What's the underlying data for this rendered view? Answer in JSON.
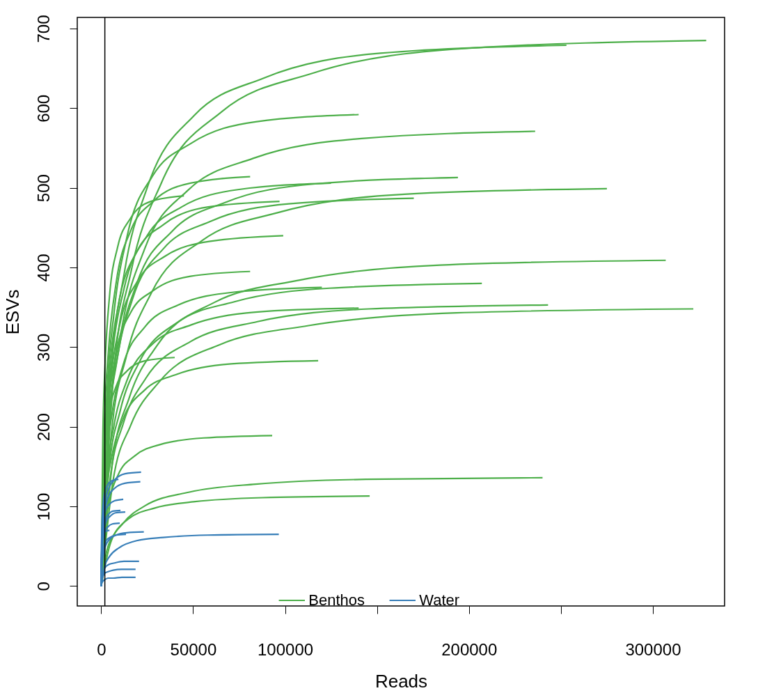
{
  "chart_data": {
    "type": "line",
    "xlabel": "Reads",
    "ylabel": "ESVs",
    "xlim": [
      -13000,
      339000
    ],
    "ylim": [
      -25,
      714
    ],
    "xticks": [
      0,
      50000,
      100000,
      {
        "value": 150000,
        "label": null
      },
      200000,
      {
        "value": 250000,
        "label": null
      },
      300000
    ],
    "yticks": [
      0,
      100,
      200,
      300,
      400,
      500,
      600,
      700
    ],
    "grid": false,
    "legend": "bottom",
    "ref_lines": [
      {
        "axis": "x",
        "value": 2000,
        "color": "#000000"
      }
    ],
    "series": [
      {
        "name": "Benthos",
        "color": "#4daf4a",
        "x": [
          0,
          5060,
          12650,
          25300,
          50600,
          88550,
          151800,
          253000
        ],
        "values": [
          0,
          258,
          394,
          502,
          591,
          638,
          669,
          679
        ]
      },
      {
        "color": "#4daf4a",
        "x": [
          0,
          6580,
          16450,
          32900,
          65800,
          115150,
          197400,
          329000
        ],
        "values": [
          0,
          260,
          397,
          507,
          596,
          644,
          675,
          685
        ]
      },
      {
        "color": "#4daf4a",
        "x": [
          0,
          2800,
          7000,
          14000,
          28000,
          49000,
          84000,
          140000
        ],
        "values": [
          0,
          225,
          343,
          438,
          515,
          556,
          583,
          592
        ]
      },
      {
        "color": "#4daf4a",
        "x": [
          0,
          4720,
          11800,
          23600,
          47200,
          82600,
          141600,
          236000
        ],
        "values": [
          0,
          217,
          331,
          423,
          497,
          537,
          562,
          571
        ]
      },
      {
        "color": "#4daf4a",
        "x": [
          0,
          1620,
          4050,
          8100,
          16200,
          28350,
          48600,
          81000
        ],
        "values": [
          0,
          195,
          298,
          380,
          447,
          483,
          506,
          514
        ]
      },
      {
        "color": "#4daf4a",
        "x": [
          0,
          2500,
          6250,
          12500,
          25000,
          43750,
          75000,
          125000
        ],
        "values": [
          0,
          192,
          293,
          374,
          440,
          476,
          498,
          506
        ]
      },
      {
        "color": "#4daf4a",
        "x": [
          0,
          3880,
          9700,
          19400,
          38800,
          67900,
          116400,
          194000
        ],
        "values": [
          0,
          195,
          298,
          380,
          446,
          482,
          505,
          513
        ]
      },
      {
        "color": "#4daf4a",
        "x": [
          0,
          900,
          2250,
          4500,
          9000,
          15750,
          27000,
          45000
        ],
        "values": [
          0,
          186,
          284,
          363,
          426,
          461,
          483,
          490
        ]
      },
      {
        "color": "#4daf4a",
        "x": [
          0,
          1940,
          4850,
          9700,
          19400,
          33950,
          58200,
          97000
        ],
        "values": [
          0,
          184,
          280,
          357,
          420,
          454,
          476,
          483
        ]
      },
      {
        "color": "#4daf4a",
        "x": [
          0,
          3400,
          8500,
          17000,
          34000,
          59500,
          102000,
          170000
        ],
        "values": [
          0,
          185,
          282,
          360,
          424,
          458,
          480,
          487
        ]
      },
      {
        "color": "#4daf4a",
        "x": [
          0,
          5500,
          13750,
          27500,
          55000,
          96250,
          165000,
          275000
        ],
        "values": [
          0,
          190,
          289,
          369,
          434,
          469,
          492,
          499
        ]
      },
      {
        "color": "#4daf4a",
        "x": [
          0,
          1980,
          4950,
          9900,
          19800,
          34650,
          59400,
          99000
        ],
        "values": [
          0,
          167,
          255,
          326,
          383,
          414,
          433,
          440
        ]
      },
      {
        "color": "#4daf4a",
        "x": [
          0,
          1620,
          4050,
          8100,
          16200,
          28350,
          48600,
          81000
        ],
        "values": [
          0,
          150,
          229,
          292,
          344,
          371,
          389,
          395
        ]
      },
      {
        "color": "#4daf4a",
        "x": [
          0,
          6140,
          15350,
          30700,
          61400,
          107450,
          184200,
          307000
        ],
        "values": [
          0,
          155,
          237,
          303,
          356,
          384,
          403,
          409
        ]
      },
      {
        "color": "#4daf4a",
        "x": [
          0,
          2400,
          6000,
          12000,
          24000,
          42000,
          72000,
          120000
        ],
        "values": [
          0,
          143,
          218,
          278,
          326,
          353,
          369,
          375
        ]
      },
      {
        "color": "#4daf4a",
        "x": [
          0,
          4140,
          10350,
          20700,
          41400,
          72450,
          124200,
          207000
        ],
        "values": [
          0,
          144,
          220,
          281,
          331,
          357,
          374,
          380
        ]
      },
      {
        "color": "#4daf4a",
        "x": [
          0,
          2800,
          7000,
          14000,
          28000,
          49000,
          84000,
          140000
        ],
        "values": [
          0,
          133,
          202,
          258,
          304,
          328,
          344,
          349
        ]
      },
      {
        "color": "#4daf4a",
        "x": [
          0,
          4860,
          12150,
          24300,
          48600,
          85050,
          145800,
          243000
        ],
        "values": [
          0,
          134,
          205,
          261,
          307,
          332,
          348,
          353
        ]
      },
      {
        "color": "#4daf4a",
        "x": [
          0,
          6440,
          16100,
          32200,
          64400,
          112700,
          193200,
          322000
        ],
        "values": [
          0,
          132,
          202,
          258,
          303,
          327,
          343,
          348
        ]
      },
      {
        "color": "#4daf4a",
        "x": [
          0,
          800,
          2000,
          4000,
          8000,
          14000,
          24000,
          40000
        ],
        "values": [
          0,
          109,
          166,
          212,
          250,
          270,
          283,
          287
        ]
      },
      {
        "color": "#4daf4a",
        "x": [
          0,
          2360,
          5900,
          11800,
          23600,
          41300,
          70800,
          118000
        ],
        "values": [
          0,
          108,
          164,
          209,
          246,
          266,
          279,
          283
        ]
      },
      {
        "color": "#4daf4a",
        "x": [
          0,
          1860,
          4650,
          9300,
          18600,
          32550,
          55800,
          93000
        ],
        "values": [
          0,
          72,
          110,
          140,
          164,
          178,
          186,
          189
        ]
      },
      {
        "color": "#4daf4a",
        "x": [
          0,
          4800,
          12000,
          24000,
          48000,
          84000,
          144000,
          240000
        ],
        "values": [
          0,
          52,
          79,
          101,
          118,
          128,
          134,
          136
        ]
      },
      {
        "color": "#4daf4a",
        "x": [
          0,
          2920,
          7300,
          14600,
          29200,
          51100,
          87600,
          146000
        ],
        "values": [
          0,
          43,
          66,
          84,
          98,
          106,
          111,
          113
        ]
      },
      {
        "name": "Water",
        "color": "#377eb8",
        "x": [
          0,
          434,
          1085,
          2170,
          4340,
          7595,
          13020,
          21700
        ],
        "values": [
          0,
          54,
          83,
          106,
          124,
          134,
          141,
          143
        ]
      },
      {
        "color": "#377eb8",
        "x": [
          0,
          426,
          1065,
          2130,
          4260,
          7455,
          12780,
          21300
        ],
        "values": [
          0,
          50,
          76,
          97,
          114,
          123,
          129,
          131
        ]
      },
      {
        "color": "#377eb8",
        "x": [
          0,
          188,
          470,
          940,
          1880,
          3290,
          5640,
          9400
        ],
        "values": [
          0,
          51,
          78,
          99,
          117,
          126,
          132,
          134
        ]
      },
      {
        "color": "#377eb8",
        "x": [
          0,
          240,
          600,
          1200,
          2400,
          4200,
          7200,
          12000
        ],
        "values": [
          0,
          41,
          63,
          81,
          95,
          102,
          107,
          109
        ]
      },
      {
        "color": "#377eb8",
        "x": [
          0,
          262,
          655,
          1310,
          2620,
          4585,
          7860,
          13100
        ],
        "values": [
          0,
          35,
          54,
          69,
          81,
          87,
          92,
          93
        ]
      },
      {
        "color": "#377eb8",
        "x": [
          0,
          210,
          525,
          1050,
          2100,
          3675,
          6300,
          10500
        ],
        "values": [
          0,
          36,
          55,
          70,
          83,
          89,
          94,
          95
        ]
      },
      {
        "color": "#377eb8",
        "x": [
          0,
          202,
          505,
          1010,
          2020,
          3535,
          6060,
          10100
        ],
        "values": [
          0,
          30,
          46,
          58,
          69,
          74,
          78,
          79
        ]
      },
      {
        "color": "#377eb8",
        "x": [
          0,
          90,
          225,
          450,
          900,
          1575,
          2700,
          4500
        ],
        "values": [
          0,
          27,
          41,
          52,
          61,
          66,
          69,
          70
        ]
      },
      {
        "color": "#377eb8",
        "x": [
          0,
          464,
          1160,
          2320,
          4640,
          8120,
          13920,
          23200
        ],
        "values": [
          0,
          26,
          39,
          50,
          59,
          64,
          67,
          68
        ]
      },
      {
        "color": "#377eb8",
        "x": [
          0,
          270,
          675,
          1350,
          2700,
          4725,
          8100,
          13500
        ],
        "values": [
          0,
          25,
          38,
          48,
          57,
          61,
          64,
          65
        ]
      },
      {
        "color": "#377eb8",
        "x": [
          0,
          1932,
          4830,
          9660,
          19320,
          33810,
          57960,
          96600
        ],
        "values": [
          0,
          25,
          38,
          48,
          57,
          61,
          64,
          65
        ]
      },
      {
        "color": "#377eb8",
        "x": [
          0,
          412,
          1030,
          2060,
          4120,
          7210,
          12360,
          20600
        ],
        "values": [
          0,
          12,
          18,
          23,
          27,
          29,
          31,
          31
        ]
      },
      {
        "color": "#377eb8",
        "x": [
          0,
          374,
          935,
          1870,
          3740,
          6545,
          11220,
          18700
        ],
        "values": [
          0,
          8,
          12,
          16,
          18,
          20,
          21,
          21
        ]
      },
      {
        "color": "#377eb8",
        "x": [
          0,
          374,
          935,
          1870,
          3740,
          6545,
          11220,
          18700
        ],
        "values": [
          0,
          4,
          6,
          8,
          10,
          10,
          11,
          11
        ]
      }
    ]
  }
}
